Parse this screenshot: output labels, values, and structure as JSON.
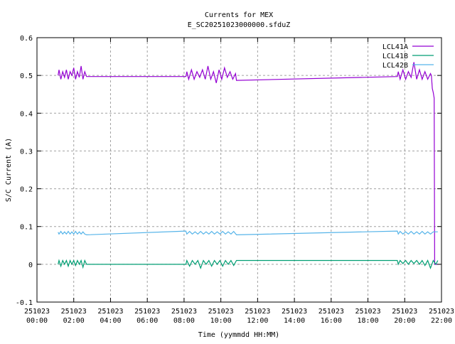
{
  "chart_data": {
    "type": "line",
    "title": "Currents for MEX",
    "subtitle": "E_SC20251023000000.sfduZ",
    "xlabel": "Time (yymmdd HH:MM)",
    "ylabel": "S/C Current (A)",
    "xlim": [
      0,
      22
    ],
    "ylim": [
      -0.1,
      0.6
    ],
    "grid": true,
    "legend_position": "top-right",
    "x_ticks": [
      {
        "hour": 0,
        "date": "251023",
        "time": "00:00"
      },
      {
        "hour": 2,
        "date": "251023",
        "time": "02:00"
      },
      {
        "hour": 4,
        "date": "251023",
        "time": "04:00"
      },
      {
        "hour": 6,
        "date": "251023",
        "time": "06:00"
      },
      {
        "hour": 8,
        "date": "251023",
        "time": "08:00"
      },
      {
        "hour": 10,
        "date": "251023",
        "time": "10:00"
      },
      {
        "hour": 12,
        "date": "251023",
        "time": "12:00"
      },
      {
        "hour": 14,
        "date": "251023",
        "time": "14:00"
      },
      {
        "hour": 16,
        "date": "251023",
        "time": "16:00"
      },
      {
        "hour": 18,
        "date": "251023",
        "time": "18:00"
      },
      {
        "hour": 20,
        "date": "251023",
        "time": "20:00"
      },
      {
        "hour": 22,
        "date": "251023",
        "time": "22:00"
      }
    ],
    "y_ticks": [
      "-0.1",
      "0",
      "0.1",
      "0.2",
      "0.3",
      "0.4",
      "0.5",
      "0.6"
    ],
    "series": [
      {
        "name": "LCL41A",
        "color": "#9400d3",
        "points": [
          [
            1.15,
            0.5
          ],
          [
            1.2,
            0.515
          ],
          [
            1.3,
            0.49
          ],
          [
            1.4,
            0.51
          ],
          [
            1.5,
            0.495
          ],
          [
            1.6,
            0.515
          ],
          [
            1.7,
            0.49
          ],
          [
            1.8,
            0.51
          ],
          [
            1.9,
            0.5
          ],
          [
            2.0,
            0.52
          ],
          [
            2.1,
            0.49
          ],
          [
            2.2,
            0.51
          ],
          [
            2.3,
            0.495
          ],
          [
            2.4,
            0.525
          ],
          [
            2.5,
            0.49
          ],
          [
            2.6,
            0.51
          ],
          [
            2.7,
            0.497
          ],
          [
            8.1,
            0.497
          ],
          [
            8.15,
            0.51
          ],
          [
            8.25,
            0.49
          ],
          [
            8.4,
            0.515
          ],
          [
            8.55,
            0.49
          ],
          [
            8.7,
            0.51
          ],
          [
            8.85,
            0.495
          ],
          [
            9.0,
            0.515
          ],
          [
            9.15,
            0.49
          ],
          [
            9.3,
            0.525
          ],
          [
            9.45,
            0.49
          ],
          [
            9.6,
            0.51
          ],
          [
            9.75,
            0.48
          ],
          [
            9.9,
            0.515
          ],
          [
            10.05,
            0.49
          ],
          [
            10.2,
            0.52
          ],
          [
            10.35,
            0.495
          ],
          [
            10.5,
            0.51
          ],
          [
            10.65,
            0.49
          ],
          [
            10.8,
            0.505
          ],
          [
            10.85,
            0.487
          ],
          [
            19.6,
            0.497
          ],
          [
            19.65,
            0.51
          ],
          [
            19.75,
            0.49
          ],
          [
            19.9,
            0.515
          ],
          [
            20.05,
            0.49
          ],
          [
            20.2,
            0.51
          ],
          [
            20.35,
            0.495
          ],
          [
            20.5,
            0.535
          ],
          [
            20.65,
            0.49
          ],
          [
            20.8,
            0.515
          ],
          [
            20.95,
            0.49
          ],
          [
            21.1,
            0.51
          ],
          [
            21.25,
            0.49
          ],
          [
            21.4,
            0.505
          ],
          [
            21.45,
            0.5
          ],
          [
            21.5,
            0.465
          ],
          [
            21.55,
            0.455
          ],
          [
            21.6,
            0.44
          ],
          [
            21.63,
            0.0
          ],
          [
            21.8,
            0.0
          ]
        ]
      },
      {
        "name": "LCL41B",
        "color": "#009e73",
        "points": [
          [
            1.15,
            0.0
          ],
          [
            1.2,
            0.01
          ],
          [
            1.3,
            -0.005
          ],
          [
            1.4,
            0.01
          ],
          [
            1.5,
            0.0
          ],
          [
            1.6,
            0.01
          ],
          [
            1.7,
            -0.005
          ],
          [
            1.8,
            0.01
          ],
          [
            1.9,
            0.0
          ],
          [
            2.0,
            0.01
          ],
          [
            2.1,
            -0.003
          ],
          [
            2.2,
            0.01
          ],
          [
            2.3,
            0.0
          ],
          [
            2.4,
            0.01
          ],
          [
            2.5,
            -0.008
          ],
          [
            2.6,
            0.01
          ],
          [
            2.7,
            0.0
          ],
          [
            8.1,
            0.0
          ],
          [
            8.15,
            0.01
          ],
          [
            8.3,
            -0.005
          ],
          [
            8.45,
            0.01
          ],
          [
            8.6,
            0.0
          ],
          [
            8.75,
            0.01
          ],
          [
            8.9,
            -0.01
          ],
          [
            9.05,
            0.01
          ],
          [
            9.2,
            0.0
          ],
          [
            9.35,
            0.01
          ],
          [
            9.5,
            -0.005
          ],
          [
            9.65,
            0.01
          ],
          [
            9.8,
            0.0
          ],
          [
            9.95,
            0.01
          ],
          [
            10.1,
            -0.005
          ],
          [
            10.25,
            0.01
          ],
          [
            10.4,
            0.0
          ],
          [
            10.55,
            0.01
          ],
          [
            10.7,
            -0.003
          ],
          [
            10.85,
            0.01
          ],
          [
            19.6,
            0.01
          ],
          [
            19.65,
            0.0
          ],
          [
            19.75,
            0.01
          ],
          [
            19.9,
            0.002
          ],
          [
            20.05,
            0.01
          ],
          [
            20.2,
            0.0
          ],
          [
            20.35,
            0.01
          ],
          [
            20.5,
            0.002
          ],
          [
            20.65,
            0.01
          ],
          [
            20.8,
            0.0
          ],
          [
            20.95,
            0.01
          ],
          [
            21.1,
            -0.003
          ],
          [
            21.25,
            0.01
          ],
          [
            21.4,
            -0.01
          ],
          [
            21.55,
            0.01
          ],
          [
            21.7,
            0.0
          ],
          [
            21.8,
            0.01
          ]
        ]
      },
      {
        "name": "LCL42B",
        "color": "#56b4e9",
        "points": [
          [
            1.15,
            0.085
          ],
          [
            1.2,
            0.08
          ],
          [
            1.3,
            0.087
          ],
          [
            1.4,
            0.08
          ],
          [
            1.5,
            0.086
          ],
          [
            1.6,
            0.08
          ],
          [
            1.7,
            0.087
          ],
          [
            1.8,
            0.08
          ],
          [
            1.9,
            0.086
          ],
          [
            2.0,
            0.08
          ],
          [
            2.1,
            0.087
          ],
          [
            2.2,
            0.08
          ],
          [
            2.3,
            0.086
          ],
          [
            2.4,
            0.08
          ],
          [
            2.5,
            0.086
          ],
          [
            2.6,
            0.08
          ],
          [
            2.7,
            0.078
          ],
          [
            8.1,
            0.088
          ],
          [
            8.15,
            0.08
          ],
          [
            8.3,
            0.087
          ],
          [
            8.45,
            0.08
          ],
          [
            8.6,
            0.086
          ],
          [
            8.75,
            0.08
          ],
          [
            8.9,
            0.087
          ],
          [
            9.05,
            0.08
          ],
          [
            9.2,
            0.086
          ],
          [
            9.35,
            0.08
          ],
          [
            9.5,
            0.087
          ],
          [
            9.65,
            0.08
          ],
          [
            9.8,
            0.086
          ],
          [
            9.95,
            0.08
          ],
          [
            10.1,
            0.087
          ],
          [
            10.25,
            0.08
          ],
          [
            10.4,
            0.086
          ],
          [
            10.55,
            0.08
          ],
          [
            10.7,
            0.087
          ],
          [
            10.85,
            0.078
          ],
          [
            19.6,
            0.088
          ],
          [
            19.65,
            0.08
          ],
          [
            19.75,
            0.087
          ],
          [
            19.9,
            0.08
          ],
          [
            20.05,
            0.086
          ],
          [
            20.2,
            0.08
          ],
          [
            20.35,
            0.087
          ],
          [
            20.5,
            0.08
          ],
          [
            20.65,
            0.086
          ],
          [
            20.8,
            0.08
          ],
          [
            20.95,
            0.087
          ],
          [
            21.1,
            0.08
          ],
          [
            21.25,
            0.086
          ],
          [
            21.4,
            0.08
          ],
          [
            21.55,
            0.086
          ],
          [
            21.8,
            0.086
          ]
        ]
      }
    ]
  }
}
